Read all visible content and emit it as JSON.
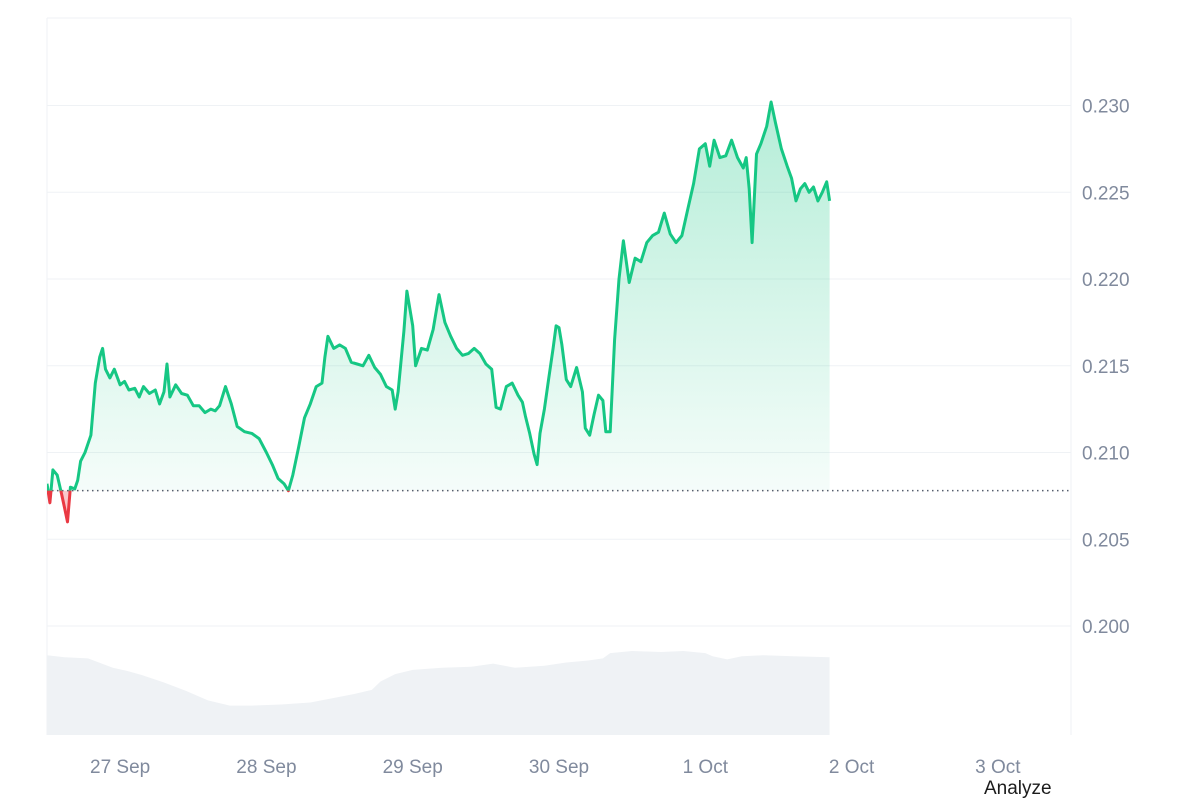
{
  "chart_data": {
    "type": "area",
    "baseline": 0.2078,
    "ylim": [
      0.1935,
      0.2347
    ],
    "y_ticks": [
      "0.200",
      "0.205",
      "0.210",
      "0.215",
      "0.220",
      "0.225",
      "0.230"
    ],
    "y_tick_values": [
      0.2,
      0.205,
      0.21,
      0.215,
      0.22,
      0.225,
      0.23
    ],
    "x_ticks": [
      "27 Sep",
      "28 Sep",
      "29 Sep",
      "30 Sep",
      "1 Oct",
      "2 Oct",
      "3 Oct"
    ],
    "x_tick_values": [
      1,
      2,
      3,
      4,
      5,
      6,
      7
    ],
    "xlim": [
      0.5,
      7.5
    ],
    "grid": true,
    "colors": {
      "up": "#16c784",
      "down": "#ea3943",
      "volume": "#eff2f5",
      "grid": "#eff2f5"
    },
    "series": [
      {
        "values": [
          [
            0.5,
            0.2082
          ],
          [
            0.52,
            0.2071
          ],
          [
            0.54,
            0.209
          ],
          [
            0.57,
            0.2087
          ],
          [
            0.6,
            0.2076
          ],
          [
            0.62,
            0.2068
          ],
          [
            0.64,
            0.206
          ],
          [
            0.66,
            0.208
          ],
          [
            0.69,
            0.2079
          ],
          [
            0.71,
            0.2084
          ],
          [
            0.73,
            0.2095
          ],
          [
            0.76,
            0.21
          ],
          [
            0.8,
            0.211
          ],
          [
            0.83,
            0.214
          ],
          [
            0.86,
            0.2155
          ],
          [
            0.88,
            0.216
          ],
          [
            0.9,
            0.2148
          ],
          [
            0.93,
            0.2143
          ],
          [
            0.96,
            0.2148
          ],
          [
            1.0,
            0.2139
          ],
          [
            1.03,
            0.2141
          ],
          [
            1.06,
            0.2136
          ],
          [
            1.1,
            0.2137
          ],
          [
            1.13,
            0.2132
          ],
          [
            1.16,
            0.2138
          ],
          [
            1.2,
            0.2134
          ],
          [
            1.24,
            0.2136
          ],
          [
            1.27,
            0.2128
          ],
          [
            1.3,
            0.2135
          ],
          [
            1.32,
            0.2151
          ],
          [
            1.34,
            0.2132
          ],
          [
            1.38,
            0.2139
          ],
          [
            1.42,
            0.2134
          ],
          [
            1.46,
            0.2133
          ],
          [
            1.5,
            0.2127
          ],
          [
            1.54,
            0.2127
          ],
          [
            1.58,
            0.2123
          ],
          [
            1.62,
            0.2125
          ],
          [
            1.65,
            0.2124
          ],
          [
            1.68,
            0.2127
          ],
          [
            1.72,
            0.2138
          ],
          [
            1.76,
            0.2128
          ],
          [
            1.8,
            0.2115
          ],
          [
            1.85,
            0.2112
          ],
          [
            1.9,
            0.2111
          ],
          [
            1.95,
            0.2108
          ],
          [
            2.0,
            0.21
          ],
          [
            2.04,
            0.2093
          ],
          [
            2.08,
            0.2085
          ],
          [
            2.12,
            0.2082
          ],
          [
            2.15,
            0.2078
          ],
          [
            2.18,
            0.2087
          ],
          [
            2.22,
            0.2103
          ],
          [
            2.26,
            0.212
          ],
          [
            2.3,
            0.2128
          ],
          [
            2.34,
            0.2138
          ],
          [
            2.38,
            0.214
          ],
          [
            2.4,
            0.2155
          ],
          [
            2.42,
            0.2167
          ],
          [
            2.46,
            0.216
          ],
          [
            2.5,
            0.2162
          ],
          [
            2.54,
            0.216
          ],
          [
            2.58,
            0.2152
          ],
          [
            2.62,
            0.2151
          ],
          [
            2.66,
            0.215
          ],
          [
            2.7,
            0.2156
          ],
          [
            2.74,
            0.2149
          ],
          [
            2.78,
            0.2145
          ],
          [
            2.82,
            0.2138
          ],
          [
            2.86,
            0.2136
          ],
          [
            2.88,
            0.2125
          ],
          [
            2.9,
            0.2135
          ],
          [
            2.94,
            0.217
          ],
          [
            2.96,
            0.2193
          ],
          [
            3.0,
            0.2173
          ],
          [
            3.02,
            0.215
          ],
          [
            3.06,
            0.216
          ],
          [
            3.1,
            0.2159
          ],
          [
            3.14,
            0.2171
          ],
          [
            3.18,
            0.2191
          ],
          [
            3.22,
            0.2175
          ],
          [
            3.26,
            0.2167
          ],
          [
            3.3,
            0.216
          ],
          [
            3.34,
            0.2156
          ],
          [
            3.38,
            0.2157
          ],
          [
            3.42,
            0.216
          ],
          [
            3.46,
            0.2157
          ],
          [
            3.5,
            0.2151
          ],
          [
            3.54,
            0.2148
          ],
          [
            3.57,
            0.2126
          ],
          [
            3.6,
            0.2125
          ],
          [
            3.64,
            0.2138
          ],
          [
            3.68,
            0.214
          ],
          [
            3.72,
            0.2133
          ],
          [
            3.75,
            0.2129
          ],
          [
            3.77,
            0.2121
          ],
          [
            3.8,
            0.2111
          ],
          [
            3.83,
            0.2099
          ],
          [
            3.85,
            0.2093
          ],
          [
            3.87,
            0.2111
          ],
          [
            3.9,
            0.2125
          ],
          [
            3.93,
            0.2143
          ],
          [
            3.96,
            0.216
          ],
          [
            3.98,
            0.2173
          ],
          [
            4.0,
            0.2172
          ],
          [
            4.02,
            0.2162
          ],
          [
            4.05,
            0.2142
          ],
          [
            4.08,
            0.2138
          ],
          [
            4.12,
            0.2149
          ],
          [
            4.16,
            0.2135
          ],
          [
            4.18,
            0.2114
          ],
          [
            4.21,
            0.211
          ],
          [
            4.24,
            0.2122
          ],
          [
            4.27,
            0.2133
          ],
          [
            4.3,
            0.213
          ],
          [
            4.32,
            0.2112
          ],
          [
            4.35,
            0.2112
          ],
          [
            4.38,
            0.2165
          ],
          [
            4.41,
            0.22
          ],
          [
            4.44,
            0.2222
          ],
          [
            4.48,
            0.2198
          ],
          [
            4.52,
            0.2212
          ],
          [
            4.56,
            0.221
          ],
          [
            4.6,
            0.2221
          ],
          [
            4.64,
            0.2225
          ],
          [
            4.68,
            0.2227
          ],
          [
            4.72,
            0.2238
          ],
          [
            4.76,
            0.2226
          ],
          [
            4.8,
            0.2221
          ],
          [
            4.84,
            0.2225
          ],
          [
            4.88,
            0.224
          ],
          [
            4.92,
            0.2255
          ],
          [
            4.96,
            0.2275
          ],
          [
            5.0,
            0.2278
          ],
          [
            5.03,
            0.2265
          ],
          [
            5.06,
            0.228
          ],
          [
            5.1,
            0.227
          ],
          [
            5.14,
            0.2271
          ],
          [
            5.18,
            0.228
          ],
          [
            5.22,
            0.227
          ],
          [
            5.26,
            0.2264
          ],
          [
            5.28,
            0.227
          ],
          [
            5.3,
            0.2252
          ],
          [
            5.32,
            0.2221
          ],
          [
            5.35,
            0.2272
          ],
          [
            5.38,
            0.2278
          ],
          [
            5.42,
            0.2288
          ],
          [
            5.45,
            0.2302
          ],
          [
            5.48,
            0.229
          ],
          [
            5.52,
            0.2275
          ],
          [
            5.56,
            0.2265
          ],
          [
            5.59,
            0.2258
          ],
          [
            5.62,
            0.2245
          ],
          [
            5.65,
            0.2252
          ],
          [
            5.68,
            0.2255
          ],
          [
            5.71,
            0.225
          ],
          [
            5.74,
            0.2253
          ],
          [
            5.77,
            0.2245
          ],
          [
            5.8,
            0.225
          ],
          [
            5.83,
            0.2256
          ],
          [
            5.85,
            0.2245
          ]
        ]
      }
    ],
    "volume": [
      [
        0.5,
        0.76
      ],
      [
        0.62,
        0.74
      ],
      [
        0.78,
        0.73
      ],
      [
        0.95,
        0.64
      ],
      [
        1.05,
        0.61
      ],
      [
        1.15,
        0.57
      ],
      [
        1.3,
        0.5
      ],
      [
        1.45,
        0.42
      ],
      [
        1.6,
        0.33
      ],
      [
        1.75,
        0.28
      ],
      [
        1.9,
        0.28
      ],
      [
        2.1,
        0.29
      ],
      [
        2.3,
        0.31
      ],
      [
        2.45,
        0.35
      ],
      [
        2.6,
        0.39
      ],
      [
        2.72,
        0.43
      ],
      [
        2.78,
        0.51
      ],
      [
        2.88,
        0.58
      ],
      [
        3.0,
        0.62
      ],
      [
        3.2,
        0.64
      ],
      [
        3.4,
        0.65
      ],
      [
        3.55,
        0.68
      ],
      [
        3.7,
        0.64
      ],
      [
        3.9,
        0.66
      ],
      [
        4.05,
        0.69
      ],
      [
        4.2,
        0.71
      ],
      [
        4.3,
        0.73
      ],
      [
        4.35,
        0.78
      ],
      [
        4.5,
        0.8
      ],
      [
        4.7,
        0.79
      ],
      [
        4.85,
        0.8
      ],
      [
        5.0,
        0.78
      ],
      [
        5.05,
        0.75
      ],
      [
        5.15,
        0.72
      ],
      [
        5.25,
        0.75
      ],
      [
        5.4,
        0.76
      ],
      [
        5.6,
        0.75
      ],
      [
        5.85,
        0.74
      ]
    ]
  },
  "ui": {
    "analyze_label": "Analyze"
  }
}
